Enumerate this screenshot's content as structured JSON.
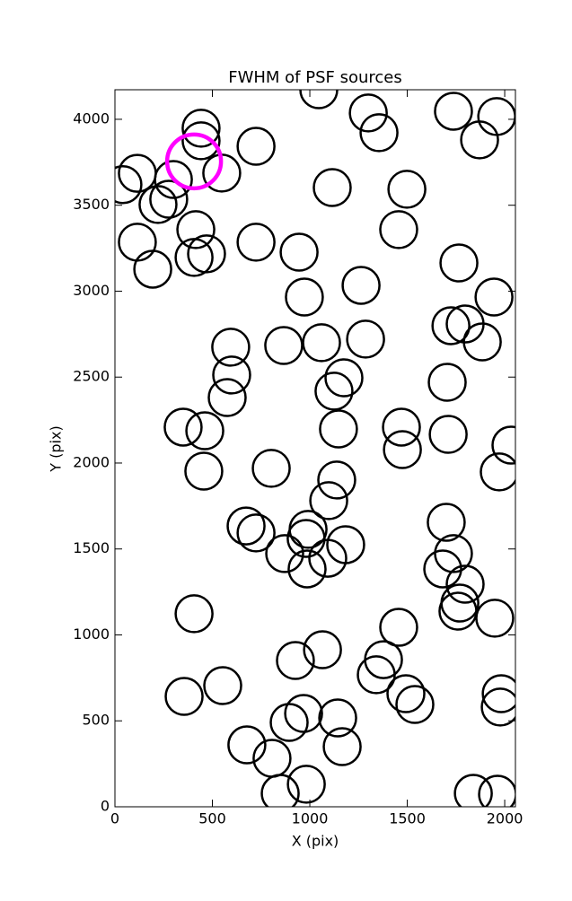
{
  "chart_data": {
    "type": "scatter",
    "title": "FWHM of PSF sources",
    "x_label": "X (pix)",
    "y_label": "Y (pix)",
    "xlim": [
      0,
      2055
    ],
    "ylim": [
      0,
      4172
    ],
    "xticks": [
      0,
      500,
      1000,
      1500,
      2000
    ],
    "yticks": [
      0,
      500,
      1000,
      1500,
      2000,
      2500,
      3000,
      3500,
      4000
    ],
    "color": "#000000",
    "x": [
      41,
      115,
      115,
      194,
      221,
      276,
      300,
      442,
      442,
      415,
      406,
      470,
      548,
      724,
      724,
      1046,
      945,
      972,
      1115,
      1300,
      1355,
      1498,
      1456,
      1263,
      1737,
      1959,
      1871,
      1765,
      1945,
      1724,
      1797,
      1885,
      1705,
      1710,
      2032,
      1972,
      594,
      599,
      576,
      866,
      1060,
      1175,
      1124,
      1286,
      1147,
      1470,
      1475,
      350,
      461,
      456,
      802,
      1138,
      1097,
      673,
      724,
      871,
      991,
      981,
      1092,
      1184,
      986,
      1700,
      1737,
      1682,
      1797,
      1770,
      1760,
      1949,
      406,
      1456,
      1065,
      926,
      1378,
      1341,
      1493,
      1539,
      355,
      553,
      1982,
      1977,
      968,
      894,
      1143,
      1166,
      677,
      806,
      848,
      982,
      1839,
      1963
    ],
    "y": [
      3620,
      3686,
      3285,
      3128,
      3504,
      3535,
      3650,
      3948,
      3875,
      3358,
      3196,
      3217,
      3687,
      3843,
      3285,
      4172,
      3227,
      2966,
      3603,
      4037,
      3922,
      3593,
      3358,
      3034,
      4047,
      4016,
      3880,
      3164,
      2966,
      2799,
      2809,
      2705,
      2470,
      2167,
      2104,
      1948,
      2674,
      2512,
      2381,
      2684,
      2700,
      2496,
      2418,
      2721,
      2198,
      2209,
      2078,
      2209,
      2188,
      1953,
      1969,
      1901,
      1781,
      1634,
      1593,
      1473,
      1614,
      1561,
      1446,
      1525,
      1384,
      1655,
      1473,
      1384,
      1295,
      1185,
      1138,
      1097,
      1123,
      1044,
      914,
      851,
      856,
      768,
      658,
      595,
      642,
      705,
      658,
      580,
      543,
      491,
      517,
      350,
      360,
      282,
      78,
      131,
      78,
      73
    ],
    "highlight": {
      "x": 406,
      "y": 3755,
      "color": "#ff00ff"
    }
  }
}
